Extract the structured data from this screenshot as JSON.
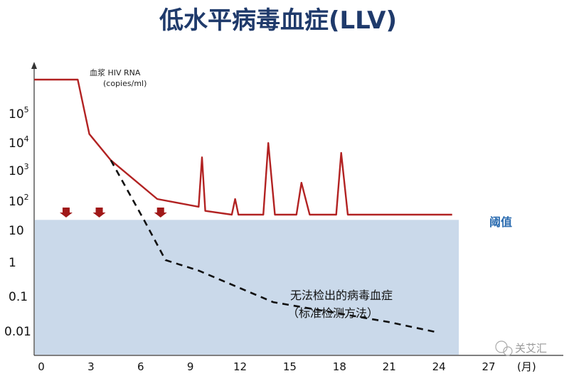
{
  "chart_data": {
    "type": "line",
    "title": "低水平病毒血症(LLV)",
    "ylabel_line1": "血浆 HIV RNA",
    "ylabel_line2": "(copies/ml)",
    "x_unit": "(月)",
    "y_scale": "log",
    "xlim": [
      0,
      27
    ],
    "ylim": [
      0.005,
      10000000
    ],
    "x_ticks": [
      0,
      3,
      6,
      9,
      12,
      15,
      18,
      21,
      24,
      27
    ],
    "y_ticks": [
      {
        "value": 100000,
        "base": "10",
        "exp": "5"
      },
      {
        "value": 10000,
        "base": "10",
        "exp": "4"
      },
      {
        "value": 1000,
        "base": "10",
        "exp": "3"
      },
      {
        "value": 100,
        "base": "10",
        "exp": "2"
      },
      {
        "value": 10,
        "base": "10",
        "exp": ""
      },
      {
        "value": 1,
        "base": "1",
        "exp": ""
      },
      {
        "value": 0.1,
        "base": "0.1",
        "exp": ""
      },
      {
        "value": 0.01,
        "base": "0.01",
        "exp": ""
      }
    ],
    "threshold": {
      "value": 20,
      "label": "阈值",
      "color": "#cad9ea"
    },
    "series": [
      {
        "style": "solid",
        "color": "#b22222",
        "points": [
          [
            -0.5,
            1000000
          ],
          [
            2.2,
            1000000
          ],
          [
            2.9,
            15000
          ],
          [
            4.2,
            2000
          ],
          [
            7,
            100
          ],
          [
            9.5,
            55
          ],
          [
            9.7,
            2500
          ],
          [
            9.9,
            40
          ],
          [
            11.5,
            30
          ],
          [
            11.7,
            100
          ],
          [
            11.9,
            30
          ],
          [
            13.4,
            30
          ],
          [
            13.7,
            7500
          ],
          [
            14.1,
            30
          ],
          [
            15.4,
            30
          ],
          [
            15.7,
            350
          ],
          [
            16.2,
            30
          ],
          [
            17.8,
            30
          ],
          [
            18.1,
            3500
          ],
          [
            18.5,
            30
          ],
          [
            24.8,
            30
          ]
        ]
      },
      {
        "style": "dashed",
        "color": "#111111",
        "points": [
          [
            4.2,
            2000
          ],
          [
            6.2,
            20
          ],
          [
            7.5,
            0.9
          ],
          [
            9.5,
            0.4
          ],
          [
            14,
            0.035
          ],
          [
            21,
            0.0075
          ],
          [
            23.8,
            0.0035
          ]
        ]
      }
    ],
    "arrows_at": [
      1.5,
      3.5,
      7.2
    ],
    "arrow_color": "#a01818",
    "annotation_line1": "无法检出的病毒血症",
    "annotation_line2": "（标准检测方法）"
  },
  "watermark": "关艾汇"
}
